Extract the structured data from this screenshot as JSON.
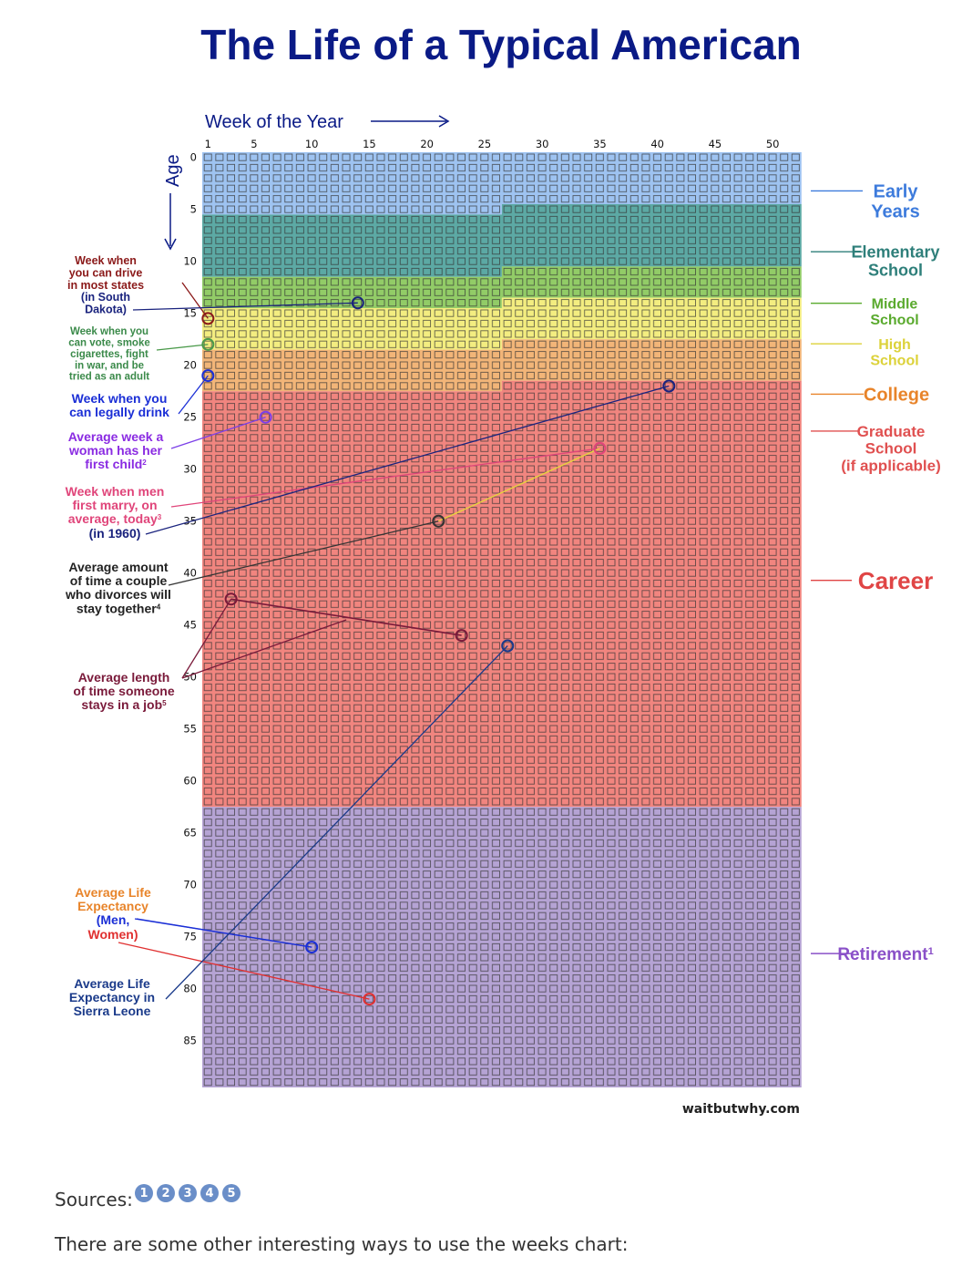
{
  "title": "The Life of a Typical American",
  "credit": "waitbutwhy.com",
  "sources": {
    "label": "Sources:",
    "links": [
      "1",
      "2",
      "3",
      "4",
      "5"
    ]
  },
  "footer_text": "There are some other interesting ways to use the weeks chart:",
  "chart_data": {
    "type": "heatmap",
    "xlabel": "Week of the Year",
    "ylabel": "Age",
    "x_ticks": [
      1,
      5,
      10,
      15,
      20,
      25,
      30,
      35,
      40,
      45,
      50
    ],
    "y_ticks": [
      0,
      5,
      10,
      15,
      20,
      25,
      30,
      35,
      40,
      45,
      50,
      55,
      60,
      65,
      70,
      75,
      80,
      85
    ],
    "weeks_per_year": 52,
    "years": 90,
    "stages": [
      {
        "name": "Early Years",
        "label_lines": [
          "Early",
          "Years"
        ],
        "start": [
          0,
          1
        ],
        "end": [
          5,
          26
        ],
        "color": "#8db8ee",
        "label_color": "#3d7bdc"
      },
      {
        "name": "Elementary School",
        "label_lines": [
          "Elementary",
          "School"
        ],
        "start": [
          5,
          27
        ],
        "end": [
          11,
          26
        ],
        "color": "#3f9a94",
        "label_color": "#2e7f7a"
      },
      {
        "name": "Middle School",
        "label_lines": [
          "Middle",
          "School"
        ],
        "start": [
          11,
          27
        ],
        "end": [
          14,
          26
        ],
        "color": "#7fc34c",
        "label_color": "#5aaa2e"
      },
      {
        "name": "High School",
        "label_lines": [
          "High",
          "School"
        ],
        "start": [
          14,
          27
        ],
        "end": [
          18,
          26
        ],
        "color": "#f1ea6a",
        "label_color": "#dcd23a"
      },
      {
        "name": "College",
        "label_lines": [
          "College"
        ],
        "start": [
          18,
          27
        ],
        "end": [
          22,
          26
        ],
        "color": "#f0a860",
        "label_color": "#e8842a"
      },
      {
        "name": "Graduate School (if applicable)",
        "label_lines": [
          "Graduate",
          "School",
          "(if applicable)"
        ],
        "start": [
          22,
          27
        ],
        "end": [
          62,
          52
        ],
        "color": "#ee7068",
        "label_color": "#e05050"
      },
      {
        "name": "Career",
        "label_lines": [
          "Career"
        ],
        "start": [
          22,
          27
        ],
        "end": [
          62,
          52
        ],
        "color": "#ee7068",
        "label_color": "#e04545"
      },
      {
        "name": "Retirement",
        "label_lines": [
          "Retirement"
        ],
        "label_sup": "1",
        "start": [
          63,
          1
        ],
        "end": [
          89,
          52
        ],
        "color": "#a893cc",
        "label_color": "#8a50c8"
      }
    ],
    "annotations": [
      {
        "lines": [
          "Week when",
          "you can drive",
          "in most states"
        ],
        "color": "#8b1a1a",
        "week": 1,
        "age": 15.5,
        "marker_color": "#8b1a1a"
      },
      {
        "lines": [
          "(in South",
          "Dakota)"
        ],
        "color": "#1a237e",
        "week": 14,
        "age": 14,
        "marker_color": "#1a237e"
      },
      {
        "lines": [
          "Week when you",
          "can vote, smoke",
          "cigarettes, fight",
          "in war, and be",
          "tried as an adult"
        ],
        "color": "#3b8a4a",
        "week": 1,
        "age": 18,
        "marker_color": "#4a9a4a"
      },
      {
        "lines": [
          "Week when you",
          "can legally drink"
        ],
        "color": "#1b2fd6",
        "week": 1,
        "age": 21,
        "marker_color": "#1b2fd6"
      },
      {
        "lines": [
          "Average week a",
          "woman has her",
          "first child"
        ],
        "sup": "2",
        "color": "#8a2be2",
        "week": 6,
        "age": 25,
        "marker_color": "#7b3fe8"
      },
      {
        "lines": [
          "Week when men",
          "first marry, on",
          "average, today"
        ],
        "sup": "3",
        "color": "#e0457a",
        "week": 35,
        "age": 28,
        "marker_color": "#e0457a"
      },
      {
        "lines": [
          "(in 1960)"
        ],
        "color": "#1a237e",
        "week": 41,
        "age": 22,
        "marker_color": "#1a237e"
      },
      {
        "lines": [
          "Average amount",
          "of time a couple",
          "who divorces will",
          "stay together"
        ],
        "sup": "4",
        "color": "#222222",
        "week": 21,
        "age": 35,
        "marker_color": "#333333"
      },
      {
        "lines": [
          "Average length",
          "of time someone",
          "stays in a job"
        ],
        "sup": "5",
        "color": "#7a1a3a",
        "week": 3,
        "age": 42.5,
        "marker_color": "#7a1a3a",
        "end_week": 23,
        "end_age": 46
      },
      {
        "lines": [
          "Average Life",
          "Expectancy"
        ],
        "color": "#e8842a",
        "week": 10,
        "age": 76,
        "marker_color": "#1b2fd6"
      },
      {
        "lines": [
          "(Men,"
        ],
        "color": "#1b2fd6",
        "week": 10,
        "age": 76,
        "marker_color": "#1b2fd6"
      },
      {
        "lines": [
          "Women)"
        ],
        "color": "#e03030",
        "week": 15,
        "age": 81,
        "marker_color": "#e03030"
      },
      {
        "lines": [
          "Average Life",
          "Expectancy in",
          "Sierra Leone"
        ],
        "color": "#1a3a8a",
        "week": 27,
        "age": 47,
        "marker_color": "#1a3a8a"
      }
    ]
  }
}
